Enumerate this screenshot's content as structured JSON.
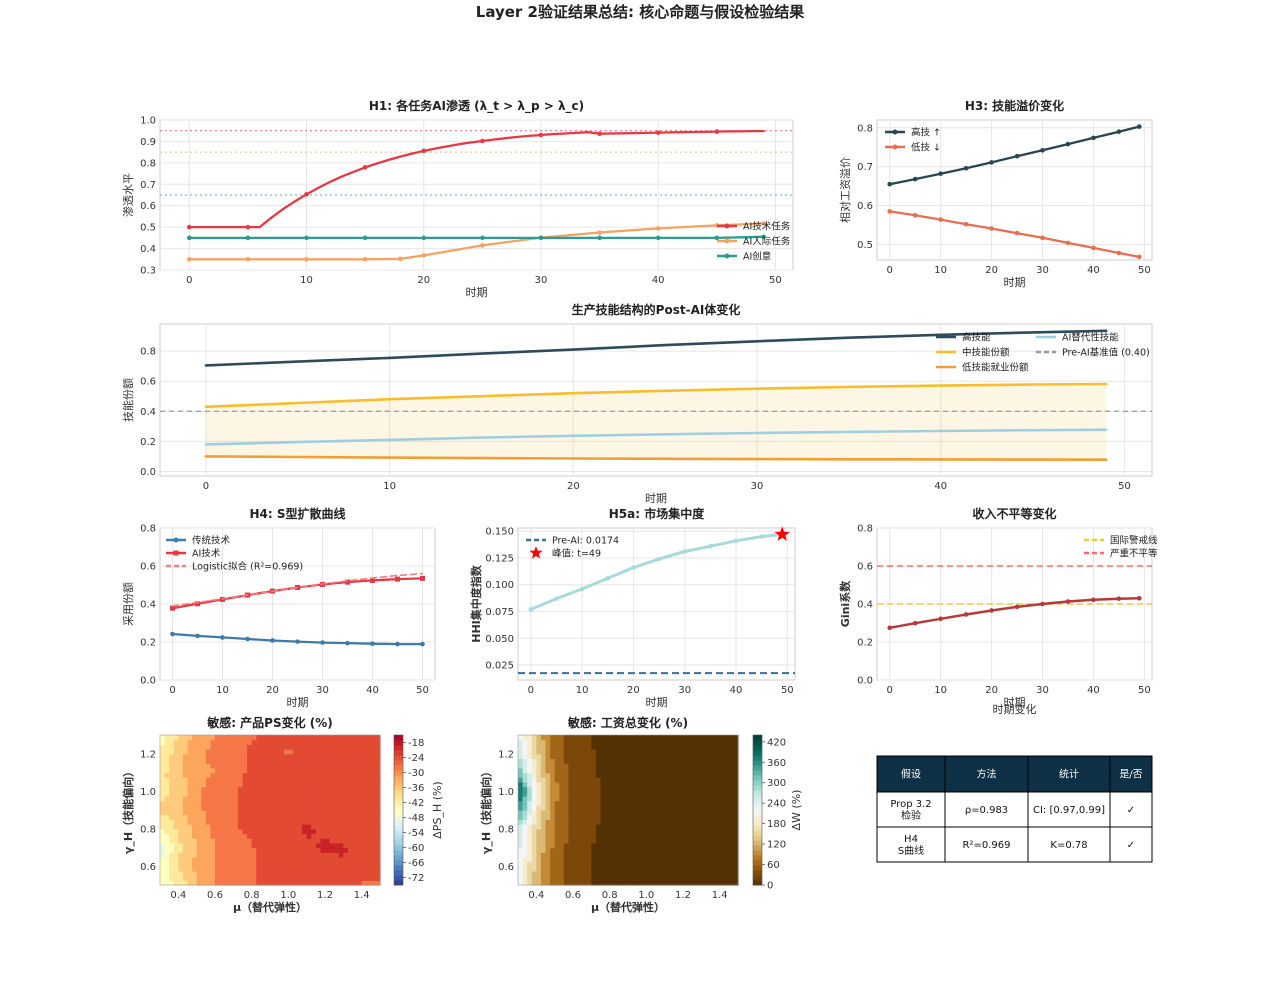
{
  "suptitle": "Layer 2验证结果总结: 核心命题与假设检验结果",
  "chart_data": [
    {
      "id": "h1",
      "type": "line",
      "title": "H1: 各任务AI渗透 (λ_t > λ_p > λ_c)",
      "xlabel": "时期",
      "ylabel": "渗透水平",
      "xlim": [
        -2.5,
        51.5
      ],
      "ylim": [
        0.3,
        1.0
      ],
      "xticks": [
        0,
        10,
        20,
        30,
        40,
        50
      ],
      "yticks": [
        0.3,
        0.4,
        0.5,
        0.6,
        0.7,
        0.8,
        0.9,
        1.0
      ],
      "grid": true,
      "legend": "lower-right",
      "ref_lines": [
        {
          "y": 0.95,
          "color": "#e63946"
        },
        {
          "y": 0.85,
          "color": "#f4a261"
        },
        {
          "y": 0.65,
          "color": "#2a9d8f"
        }
      ],
      "series": [
        {
          "name": "AI技术任务",
          "color": "#e63946",
          "x": [
            0,
            1,
            2,
            3,
            4,
            5,
            6,
            7,
            8,
            9,
            10,
            11,
            12,
            13,
            14,
            15,
            16,
            17,
            18,
            19,
            20,
            21,
            22,
            23,
            24,
            25,
            26,
            27,
            28,
            29,
            30,
            31,
            32,
            33,
            34,
            35,
            36,
            37,
            38,
            39,
            40,
            41,
            42,
            43,
            44,
            45,
            46,
            47,
            48,
            49
          ],
          "y": [
            0.5,
            0.5,
            0.5,
            0.5,
            0.5,
            0.5,
            0.5,
            0.544,
            0.584,
            0.62,
            0.653,
            0.683,
            0.711,
            0.736,
            0.758,
            0.779,
            0.797,
            0.814,
            0.829,
            0.843,
            0.856,
            0.867,
            0.877,
            0.887,
            0.895,
            0.902,
            0.909,
            0.915,
            0.921,
            0.926,
            0.93,
            0.934,
            0.937,
            0.94,
            0.943,
            0.936,
            0.937,
            0.938,
            0.939,
            0.94,
            0.941,
            0.942,
            0.943,
            0.944,
            0.945,
            0.946,
            0.947,
            0.947,
            0.948,
            0.948
          ],
          "markers_every": 5
        },
        {
          "name": "AI人际任务",
          "color": "#f4a261",
          "x": [
            0,
            5,
            10,
            15,
            18,
            20,
            25,
            30,
            35,
            40,
            45,
            49
          ],
          "y": [
            0.35,
            0.35,
            0.35,
            0.35,
            0.352,
            0.368,
            0.415,
            0.451,
            0.475,
            0.494,
            0.508,
            0.517
          ],
          "markers_every": 1
        },
        {
          "name": "AI创意",
          "color": "#2a9d8f",
          "x": [
            0,
            5,
            10,
            15,
            20,
            25,
            30,
            35,
            40,
            45,
            49
          ],
          "y": [
            0.45,
            0.45,
            0.45,
            0.45,
            0.45,
            0.45,
            0.45,
            0.45,
            0.45,
            0.45,
            0.455
          ],
          "markers_every": 1
        }
      ]
    },
    {
      "id": "h3",
      "type": "line",
      "title": "H3: 技能溢价变化",
      "xlabel": "时期",
      "ylabel": "相对工资溢价",
      "xlim": [
        -2.5,
        51.5
      ],
      "ylim": [
        0.46,
        0.82
      ],
      "xticks": [
        0,
        10,
        20,
        30,
        40,
        50
      ],
      "yticks": [
        0.5,
        0.6,
        0.7,
        0.8
      ],
      "grid": true,
      "legend": "top-left",
      "series": [
        {
          "name": "高技 ↑",
          "color": "#264653",
          "x": [
            0,
            5,
            10,
            15,
            20,
            25,
            30,
            35,
            40,
            45,
            49
          ],
          "y": [
            0.655,
            0.668,
            0.682,
            0.696,
            0.711,
            0.727,
            0.742,
            0.758,
            0.774,
            0.79,
            0.803
          ]
        },
        {
          "name": "低技 ↓",
          "color": "#e76f51",
          "x": [
            0,
            5,
            10,
            15,
            20,
            25,
            30,
            35,
            40,
            45,
            49
          ],
          "y": [
            0.585,
            0.575,
            0.564,
            0.552,
            0.541,
            0.529,
            0.517,
            0.504,
            0.491,
            0.478,
            0.468
          ]
        }
      ]
    },
    {
      "id": "post_ai",
      "type": "area",
      "title": "生产技能结构的Post-AI体变化",
      "xlabel": "时期",
      "ylabel": "技能份额",
      "xlim": [
        -2.5,
        51.5
      ],
      "ylim": [
        -0.03,
        0.98
      ],
      "xticks": [
        0,
        10,
        20,
        30,
        40,
        50
      ],
      "yticks": [
        0.0,
        0.2,
        0.4,
        0.6,
        0.8
      ],
      "grid": true,
      "legend": "top-right",
      "ref_line": {
        "y": 0.4,
        "label": "Pre-AI基准值 (0.40)",
        "color": "#999999"
      },
      "series": [
        {
          "name": "高技能",
          "color": "#2f4b5a",
          "x": [
            0,
            5,
            10,
            15,
            20,
            25,
            30,
            35,
            40,
            45,
            49
          ],
          "y": [
            0.705,
            0.73,
            0.755,
            0.783,
            0.81,
            0.84,
            0.865,
            0.889,
            0.908,
            0.924,
            0.935
          ]
        },
        {
          "name": "中技能份额",
          "color": "#f6bd2d",
          "x": [
            0,
            5,
            10,
            15,
            20,
            25,
            30,
            35,
            40,
            45,
            49
          ],
          "y": [
            0.43,
            0.455,
            0.48,
            0.5,
            0.52,
            0.536,
            0.55,
            0.562,
            0.571,
            0.578,
            0.581
          ]
        },
        {
          "name": "AI替代性技能",
          "color": "#9ecfe0",
          "x": [
            0,
            5,
            10,
            15,
            20,
            25,
            30,
            35,
            40,
            45,
            49
          ],
          "y": [
            0.18,
            0.195,
            0.21,
            0.225,
            0.237,
            0.247,
            0.256,
            0.263,
            0.269,
            0.274,
            0.277
          ]
        },
        {
          "name": "低技能就业份额",
          "color": "#f29e33",
          "x": [
            0,
            5,
            10,
            15,
            20,
            25,
            30,
            35,
            40,
            45,
            49
          ],
          "y": [
            0.1,
            0.096,
            0.092,
            0.089,
            0.086,
            0.084,
            0.082,
            0.081,
            0.08,
            0.079,
            0.078
          ]
        }
      ]
    },
    {
      "id": "h4",
      "type": "line",
      "title": "H4: S型扩散曲线",
      "xlabel": "时期",
      "ylabel": "采用份额",
      "xlim": [
        -2.5,
        52.5
      ],
      "ylim": [
        0.0,
        0.8
      ],
      "xticks": [
        0,
        10,
        20,
        30,
        40,
        50
      ],
      "yticks": [
        0.0,
        0.2,
        0.4,
        0.6,
        0.8
      ],
      "grid": true,
      "legend": "top-left",
      "series": [
        {
          "name": "传统技术",
          "color": "#3d7ca8",
          "x": [
            0,
            5,
            10,
            15,
            20,
            25,
            30,
            35,
            40,
            45,
            50
          ],
          "y": [
            0.242,
            0.232,
            0.224,
            0.216,
            0.208,
            0.202,
            0.197,
            0.194,
            0.191,
            0.189,
            0.189
          ]
        },
        {
          "name": "AI技术",
          "color": "#e63946",
          "x": [
            0,
            5,
            10,
            15,
            20,
            25,
            30,
            35,
            40,
            45,
            50
          ],
          "y": [
            0.378,
            0.401,
            0.424,
            0.447,
            0.468,
            0.487,
            0.503,
            0.515,
            0.524,
            0.531,
            0.535
          ]
        },
        {
          "name": "Logistic拟合 (R²=0.969)",
          "color": "#f08080",
          "dashed": true,
          "x": [
            0,
            5,
            10,
            15,
            20,
            25,
            30,
            35,
            40,
            45,
            50
          ],
          "y": [
            0.39,
            0.408,
            0.428,
            0.448,
            0.467,
            0.487,
            0.505,
            0.522,
            0.537,
            0.55,
            0.56
          ]
        }
      ]
    },
    {
      "id": "h5a",
      "type": "line",
      "title": "H5a: 市场集中度",
      "xlabel": "时期",
      "ylabel": "HHI集中度指数",
      "xlim": [
        -2.5,
        51.5
      ],
      "ylim": [
        0.011,
        0.153
      ],
      "xticks": [
        0,
        10,
        20,
        30,
        40,
        50
      ],
      "yticks": [
        0.025,
        0.05,
        0.075,
        0.1,
        0.125,
        0.15
      ],
      "grid": true,
      "legend": "top-left",
      "ref_line": {
        "y": 0.0174,
        "label": "Pre-AI: 0.0174",
        "color": "#3d6e91"
      },
      "star": {
        "x": 49,
        "y": 0.147,
        "label": "峰值: t=49",
        "color": "#ff0000"
      },
      "series": [
        {
          "name": "HHI",
          "color": "#a8dadc",
          "x": [
            0,
            5,
            10,
            15,
            20,
            25,
            30,
            35,
            40,
            45,
            49
          ],
          "y": [
            0.077,
            0.087,
            0.096,
            0.106,
            0.116,
            0.124,
            0.131,
            0.136,
            0.141,
            0.145,
            0.147
          ]
        }
      ]
    },
    {
      "id": "gini",
      "type": "line",
      "title": "收入不平等变化",
      "xlabel": "时期",
      "ylabel": "Gini系数",
      "extra_label": "时期变化",
      "xlim": [
        -2.5,
        51.5
      ],
      "ylim": [
        0.0,
        0.8
      ],
      "xticks": [
        0,
        10,
        20,
        30,
        40,
        50
      ],
      "yticks": [
        0.0,
        0.2,
        0.4,
        0.6,
        0.8
      ],
      "grid": true,
      "legend": "top-right",
      "ref_lines": [
        {
          "y": 0.4,
          "label": "国际警戒线",
          "color": "#f4c542"
        },
        {
          "y": 0.6,
          "label": "严重不平等",
          "color": "#ff6b6b"
        }
      ],
      "series": [
        {
          "name": "Gini",
          "color": "#b53a3a",
          "x": [
            0,
            5,
            10,
            15,
            20,
            25,
            30,
            35,
            40,
            45,
            49
          ],
          "y": [
            0.275,
            0.299,
            0.322,
            0.345,
            0.366,
            0.385,
            0.4,
            0.413,
            0.422,
            0.428,
            0.43
          ]
        }
      ]
    },
    {
      "id": "sens_ps",
      "type": "heatmap",
      "title": "敏感: 产品PS变化 (%)",
      "xlabel": "μ（替代弹性）",
      "ylabel": "γ_H（技能偏向）",
      "xlim": [
        0.3,
        1.5
      ],
      "ylim": [
        0.5,
        1.3
      ],
      "xticks": [
        0.4,
        0.6,
        0.8,
        1.0,
        1.2,
        1.4
      ],
      "yticks": [
        0.6,
        0.8,
        1.0,
        1.2
      ],
      "colorbar_label": "ΔPS_H (%)",
      "colorbar_ticks": [
        -18,
        -24,
        -30,
        -36,
        -42,
        -48,
        -54,
        -60,
        -66,
        -72
      ],
      "grid_x": [
        0.3,
        0.4,
        0.5,
        0.6,
        0.7,
        0.8,
        0.9,
        1.0,
        1.1,
        1.2,
        1.3,
        1.4,
        1.5
      ],
      "grid_y": [
        0.5,
        0.6,
        0.7,
        0.8,
        0.9,
        1.0,
        1.1,
        1.2,
        1.3
      ],
      "z": [
        [
          -46,
          -42,
          -35,
          -30,
          -27,
          -26,
          -25,
          -25,
          -25,
          -24,
          -25,
          -26,
          -26
        ],
        [
          -46,
          -38,
          -33,
          -30,
          -27,
          -26,
          -25,
          -24,
          -24,
          -23,
          -22,
          -24,
          -25
        ],
        [
          -50,
          -40,
          -34,
          -30,
          -27,
          -26,
          -24,
          -23,
          -22,
          -21,
          -21,
          -23,
          -25
        ],
        [
          -44,
          -38,
          -33,
          -29,
          -26,
          -25,
          -23,
          -22,
          -21,
          -22,
          -23,
          -24,
          -25
        ],
        [
          -38,
          -35,
          -31,
          -28,
          -26,
          -25,
          -24,
          -22,
          -22,
          -22,
          -23,
          -24,
          -25
        ],
        [
          -40,
          -37,
          -31,
          -28,
          -26,
          -25,
          -23,
          -23,
          -23,
          -22,
          -23,
          -24,
          -25
        ],
        [
          -40,
          -36,
          -31,
          -30,
          -27,
          -25,
          -25,
          -24,
          -24,
          -23,
          -24,
          -25,
          -25
        ],
        [
          -42,
          -36,
          -31,
          -29,
          -27,
          -25,
          -25,
          -26,
          -25,
          -24,
          -25,
          -25,
          -25
        ],
        [
          -46,
          -38,
          -33,
          -30,
          -28,
          -26,
          -25,
          -25,
          -25,
          -24,
          -25,
          -25,
          -25
        ]
      ],
      "colorscale": [
        "#313695",
        "#4575b4",
        "#74add1",
        "#abd9e9",
        "#e0f3f8",
        "#ffffbf",
        "#fee090",
        "#fdae61",
        "#f46d43",
        "#d73027",
        "#a50026"
      ],
      "zrange": [
        -75,
        -15
      ]
    },
    {
      "id": "sens_w",
      "type": "heatmap",
      "title": "敏感: 工资总变化 (%)",
      "xlabel": "μ（替代弹性）",
      "ylabel": "γ_H（技能偏向）",
      "xlim": [
        0.3,
        1.5
      ],
      "ylim": [
        0.5,
        1.3
      ],
      "xticks": [
        0.4,
        0.6,
        0.8,
        1.0,
        1.2,
        1.4
      ],
      "yticks": [
        0.6,
        0.8,
        1.0,
        1.2
      ],
      "colorbar_label": "ΔW (%)",
      "colorbar_ticks": [
        0,
        60,
        120,
        180,
        240,
        300,
        360,
        420
      ],
      "grid_x": [
        0.3,
        0.4,
        0.5,
        0.6,
        0.7,
        0.8,
        0.9,
        1.0,
        1.1,
        1.2,
        1.3,
        1.4,
        1.5
      ],
      "grid_y": [
        0.5,
        0.6,
        0.7,
        0.8,
        0.9,
        1.0,
        1.1,
        1.2,
        1.3
      ],
      "z": [
        [
          230,
          120,
          60,
          30,
          15,
          10,
          8,
          8,
          8,
          8,
          8,
          8,
          8
        ],
        [
          240,
          130,
          60,
          30,
          15,
          10,
          8,
          8,
          8,
          8,
          8,
          8,
          8
        ],
        [
          250,
          140,
          70,
          32,
          16,
          10,
          8,
          8,
          8,
          8,
          8,
          8,
          8
        ],
        [
          270,
          150,
          72,
          35,
          18,
          11,
          8,
          8,
          8,
          8,
          8,
          8,
          8
        ],
        [
          360,
          180,
          80,
          38,
          20,
          12,
          8,
          8,
          8,
          8,
          8,
          8,
          8
        ],
        [
          420,
          210,
          90,
          40,
          20,
          12,
          8,
          8,
          8,
          8,
          2,
          2,
          8
        ],
        [
          330,
          170,
          75,
          35,
          18,
          11,
          8,
          8,
          8,
          8,
          8,
          3,
          8
        ],
        [
          270,
          150,
          65,
          32,
          17,
          10,
          8,
          8,
          8,
          8,
          8,
          8,
          8
        ],
        [
          240,
          135,
          60,
          30,
          15,
          10,
          8,
          8,
          8,
          8,
          8,
          8,
          8
        ]
      ],
      "colorscale": [
        "#543005",
        "#8c510a",
        "#bf812d",
        "#dfc27d",
        "#f6e8c3",
        "#f5f5f5",
        "#c7eae5",
        "#80cdc1",
        "#35978f",
        "#01665e",
        "#003c30"
      ],
      "zrange": [
        0,
        440
      ]
    }
  ],
  "table": {
    "headers": [
      "假设",
      "方法",
      "统计",
      "是/否"
    ],
    "rows": [
      [
        "Prop 3.2|检验",
        "ρ=0.983",
        "CI: [0.97,0.99]",
        "✓"
      ],
      [
        "H4|S曲线",
        "R²=0.969",
        "K=0.78",
        "✓"
      ]
    ],
    "header_color": "#0d3047"
  }
}
